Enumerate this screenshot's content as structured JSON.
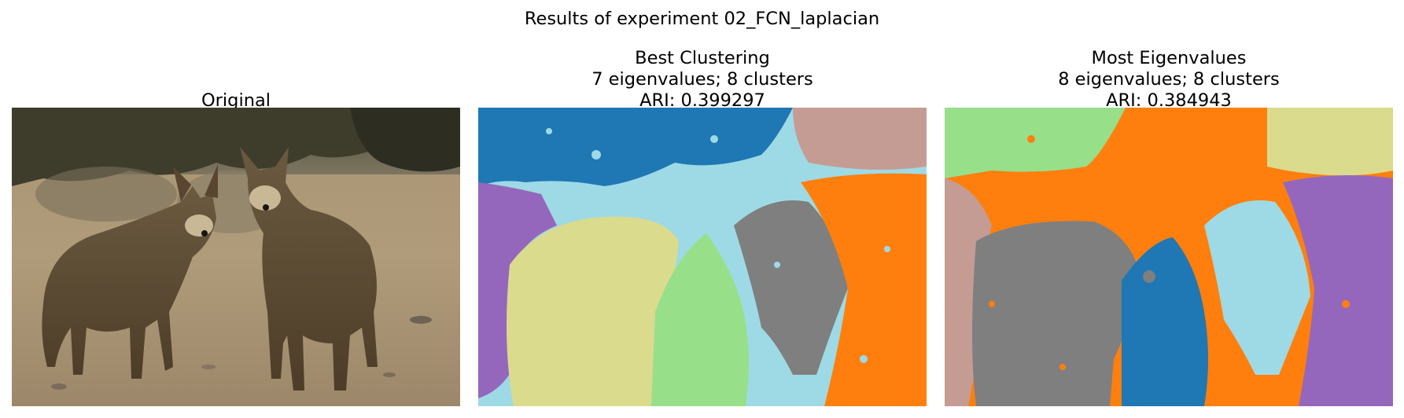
{
  "figure": {
    "suptitle": "Results of experiment 02_FCN_laplacian"
  },
  "panels": [
    {
      "title_lines": [
        "Original"
      ]
    },
    {
      "title_lines": [
        "Best Clustering",
        "7 eigenvalues; 8 clusters",
        "ARI: 0.399297"
      ]
    },
    {
      "title_lines": [
        "Most Eigenvalues",
        "8 eigenvalues; 8 clusters",
        "ARI: 0.384943"
      ]
    }
  ],
  "colors": {
    "cluster_blue": "#1f77b4",
    "cluster_lightblue": "#9edae5",
    "cluster_yellow": "#dbdb8d",
    "cluster_green": "#98df8a",
    "cluster_gray": "#7f7f7f",
    "cluster_orange": "#ff7f0e",
    "cluster_pink": "#c49c94",
    "cluster_purple": "#9467bd"
  }
}
